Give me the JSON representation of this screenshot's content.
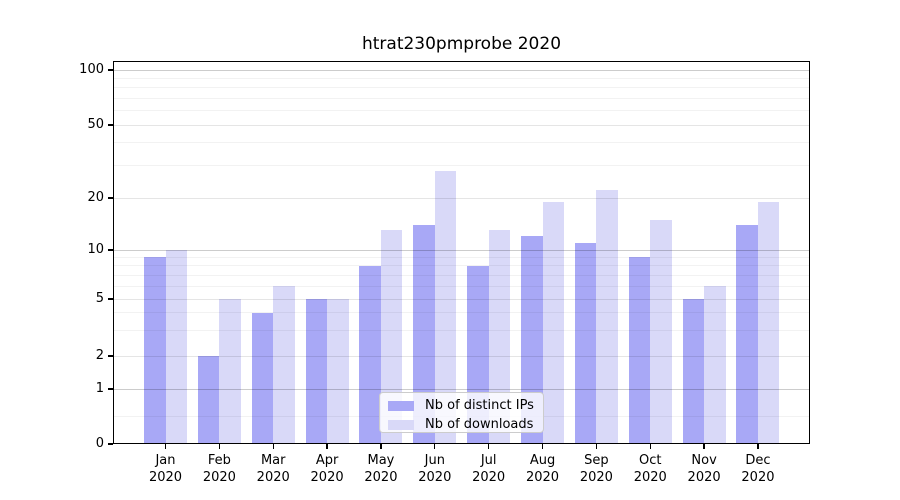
{
  "figure_title": "htrat230pmprobe 2020",
  "chart_data": {
    "type": "bar",
    "title": "htrat230pmprobe 2020",
    "categories": [
      "Jan",
      "Feb",
      "Mar",
      "Apr",
      "May",
      "Jun",
      "Jul",
      "Aug",
      "Sep",
      "Oct",
      "Nov",
      "Dec"
    ],
    "category_year": "2020",
    "series": [
      {
        "name": "Nb of distinct IPs",
        "color": "#a8a8f6",
        "values": [
          9,
          2,
          4,
          5,
          8,
          14,
          8,
          12,
          11,
          9,
          5,
          14
        ]
      },
      {
        "name": "Nb of downloads",
        "color": "#d9d9f8",
        "values": [
          10,
          5,
          6,
          5,
          13,
          28,
          13,
          19,
          22,
          15,
          6,
          19
        ]
      }
    ],
    "xlabel": "",
    "ylabel": "",
    "yscale": "log-like",
    "yticks": [
      0,
      1,
      2,
      5,
      10,
      20,
      50,
      100
    ],
    "ytick_labels": [
      "0",
      "1",
      "2",
      "5",
      "10",
      "20",
      "50",
      "100"
    ],
    "minor_gridline_values": [
      0.5,
      3,
      4,
      6,
      7,
      8,
      9,
      30,
      40,
      60,
      70,
      80,
      90
    ],
    "mid_gridline_values": [
      2,
      5,
      20,
      50
    ],
    "major_gridline_values": [
      1,
      10,
      100
    ],
    "ylim": [
      0,
      112
    ],
    "grid": true,
    "legend_position": "lower center"
  }
}
